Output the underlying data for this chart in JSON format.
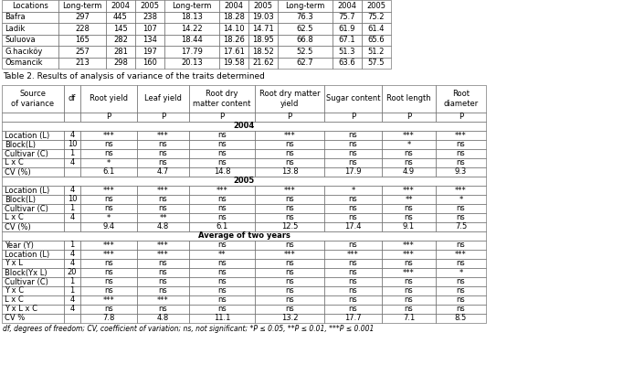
{
  "table1_headers": [
    "Locations",
    "Long-term",
    "2004",
    "2005",
    "Long-term",
    "2004",
    "2005",
    "Long-term",
    "2004",
    "2005"
  ],
  "table1_rows": [
    [
      "Bafra",
      "297",
      "445",
      "238",
      "18.13",
      "18.28",
      "19.03",
      "76.3",
      "75.7",
      "75.2"
    ],
    [
      "Ladik",
      "228",
      "145",
      "107",
      "14.22",
      "14.10",
      "14.71",
      "62.5",
      "61.9",
      "61.4"
    ],
    [
      "Suluova",
      "165",
      "282",
      "134",
      "18.44",
      "18.26",
      "18.95",
      "66.8",
      "67.1",
      "65.6"
    ],
    [
      "G.hacıköy",
      "257",
      "281",
      "197",
      "17.79",
      "17.61",
      "18.52",
      "52.5",
      "51.3",
      "51.2"
    ],
    [
      "Osmancik",
      "213",
      "298",
      "160",
      "20.13",
      "19.58",
      "21.62",
      "62.7",
      "63.6",
      "57.5"
    ]
  ],
  "table2_title": "Table 2. Results of analysis of variance of the traits determined",
  "table2_headers": [
    "Source\nof variance",
    "df",
    "Root yield",
    "Leaf yield",
    "Root dry\nmatter content",
    "Root dry matter\nyield",
    "Sugar content",
    "Root length",
    "Root\ndiameter"
  ],
  "table2_p_row": [
    "",
    "",
    "P",
    "P",
    "P",
    "P",
    "P",
    "P",
    "P"
  ],
  "table2_section_2004": "2004",
  "table2_rows_2004": [
    [
      "Location (L)",
      "4",
      "***",
      "***",
      "ns",
      "***",
      "ns",
      "***",
      "***"
    ],
    [
      "Block(L)",
      "10",
      "ns",
      "ns",
      "ns",
      "ns",
      "ns",
      "*",
      "ns"
    ],
    [
      "Cultivar (C)",
      "1",
      "ns",
      "ns",
      "ns",
      "ns",
      "ns",
      "ns",
      "ns"
    ],
    [
      "L x C",
      "4",
      "*",
      "ns",
      "ns",
      "ns",
      "ns",
      "ns",
      "ns"
    ],
    [
      "CV (%)",
      "",
      "6.1",
      "4.7",
      "14.8",
      "13.8",
      "17.9",
      "4.9",
      "9.3"
    ]
  ],
  "table2_section_2005": "2005",
  "table2_rows_2005": [
    [
      "Location (L)",
      "4",
      "***",
      "***",
      "***",
      "***",
      "*",
      "***",
      "***"
    ],
    [
      "Block(L)",
      "10",
      "ns",
      "ns",
      "ns",
      "ns",
      "ns",
      "**",
      "*"
    ],
    [
      "Cultivar (C)",
      "1",
      "ns",
      "ns",
      "ns",
      "ns",
      "ns",
      "ns",
      "ns"
    ],
    [
      "L x C",
      "4",
      "*",
      "**",
      "ns",
      "ns",
      "ns",
      "ns",
      "ns"
    ],
    [
      "CV (%)",
      "",
      "9.4",
      "4.8",
      "6.1",
      "12.5",
      "17.4",
      "9.1",
      "7.5"
    ]
  ],
  "table2_section_avg": "Average of two years",
  "table2_rows_avg": [
    [
      "Year (Y)",
      "1",
      "***",
      "***",
      "ns",
      "ns",
      "ns",
      "***",
      "ns"
    ],
    [
      "Location (L)",
      "4",
      "***",
      "***",
      "**",
      "***",
      "***",
      "***",
      "***"
    ],
    [
      "Y x L",
      "4",
      "ns",
      "ns",
      "ns",
      "ns",
      "ns",
      "ns",
      "ns"
    ],
    [
      "Block(Yx L)",
      "20",
      "ns",
      "ns",
      "ns",
      "ns",
      "ns",
      "***",
      "*"
    ],
    [
      "Cultivar (C)",
      "1",
      "ns",
      "ns",
      "ns",
      "ns",
      "ns",
      "ns",
      "ns"
    ],
    [
      "Y x C",
      "1",
      "ns",
      "ns",
      "ns",
      "ns",
      "ns",
      "ns",
      "ns"
    ],
    [
      "L x C",
      "4",
      "***",
      "***",
      "ns",
      "ns",
      "ns",
      "ns",
      "ns"
    ],
    [
      "Y x L x C",
      "4",
      "ns",
      "ns",
      "ns",
      "ns",
      "ns",
      "ns",
      "ns"
    ],
    [
      "CV %",
      "",
      "7.8",
      "4.8",
      "11.1",
      "13.2",
      "17.7",
      "7.1",
      "8.5"
    ]
  ],
  "footnote": "df, degrees of freedom; CV, coefficient of variation; ns, not significant; *P ≤ 0.05, **P ≤ 0.01, ***P ≤ 0.001",
  "bg_color": "#ffffff",
  "border_color": "#555555",
  "font_size": 6.0
}
